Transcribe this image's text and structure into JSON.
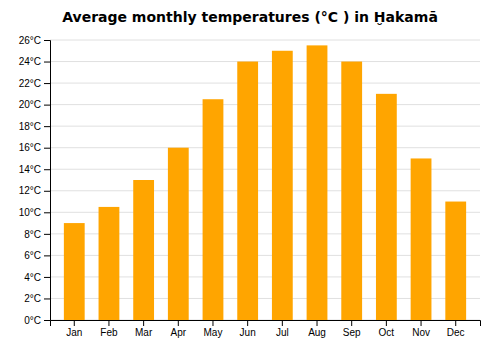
{
  "chart_data": {
    "type": "bar",
    "title": "Average monthly temperatures (°C ) in Ḫakamā",
    "categories": [
      "Jan",
      "Feb",
      "Mar",
      "Apr",
      "May",
      "Jun",
      "Jul",
      "Aug",
      "Sep",
      "Oct",
      "Nov",
      "Dec"
    ],
    "values": [
      9.0,
      10.5,
      13.0,
      16.0,
      20.5,
      24.0,
      25.0,
      25.5,
      24.0,
      21.0,
      15.0,
      11.0
    ],
    "color": "#FFA500",
    "ylim": [
      0,
      26
    ],
    "yticks": [
      {
        "value": 0,
        "label": "0°C"
      },
      {
        "value": 2,
        "label": "2°C"
      },
      {
        "value": 4,
        "label": "4°C"
      },
      {
        "value": 6,
        "label": "6°C"
      },
      {
        "value": 8,
        "label": "8°C"
      },
      {
        "value": 10,
        "label": "10°C"
      },
      {
        "value": 12,
        "label": "12°C"
      },
      {
        "value": 14,
        "label": "14°C"
      },
      {
        "value": 16,
        "label": "16°C"
      },
      {
        "value": 18,
        "label": "18°C"
      },
      {
        "value": 20,
        "label": "20°C"
      },
      {
        "value": 22,
        "label": "22°C"
      },
      {
        "value": 24,
        "label": "24°C"
      },
      {
        "value": 26,
        "label": "26°C"
      }
    ],
    "grid": true
  }
}
